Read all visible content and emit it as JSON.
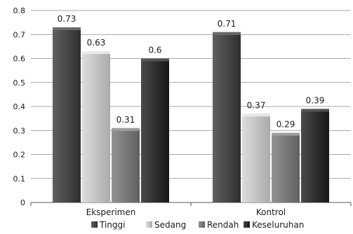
{
  "chart_data": {
    "type": "bar",
    "categories": [
      "Eksperimen",
      "Kontrol"
    ],
    "series": [
      {
        "name": "Tinggi",
        "values": [
          0.73,
          0.71
        ],
        "labels": [
          "0.73",
          "0.71"
        ]
      },
      {
        "name": "Sedang",
        "values": [
          0.63,
          0.37
        ],
        "labels": [
          "0.63",
          "0.37"
        ]
      },
      {
        "name": "Rendah",
        "values": [
          0.31,
          0.29
        ],
        "labels": [
          "0.31",
          "0.29"
        ]
      },
      {
        "name": "Keseluruhan",
        "values": [
          0.6,
          0.39
        ],
        "labels": [
          "0.6",
          "0.39"
        ]
      }
    ],
    "ylim": [
      0,
      0.8
    ],
    "yticks": [
      0,
      0.1,
      0.2,
      0.3,
      0.4,
      0.5,
      0.6,
      0.7,
      0.8
    ],
    "ytick_labels": [
      "0",
      "0.1",
      "0.2",
      "0.3",
      "0.4",
      "0.5",
      "0.6",
      "0.7",
      "0.8"
    ],
    "grid": true,
    "legend_position": "bottom",
    "style": "3d-shaded",
    "colors": [
      "#4a4a4a",
      "#c6c6c6",
      "#7c7c7c",
      "#333333"
    ],
    "title": "",
    "xlabel": "",
    "ylabel": ""
  }
}
